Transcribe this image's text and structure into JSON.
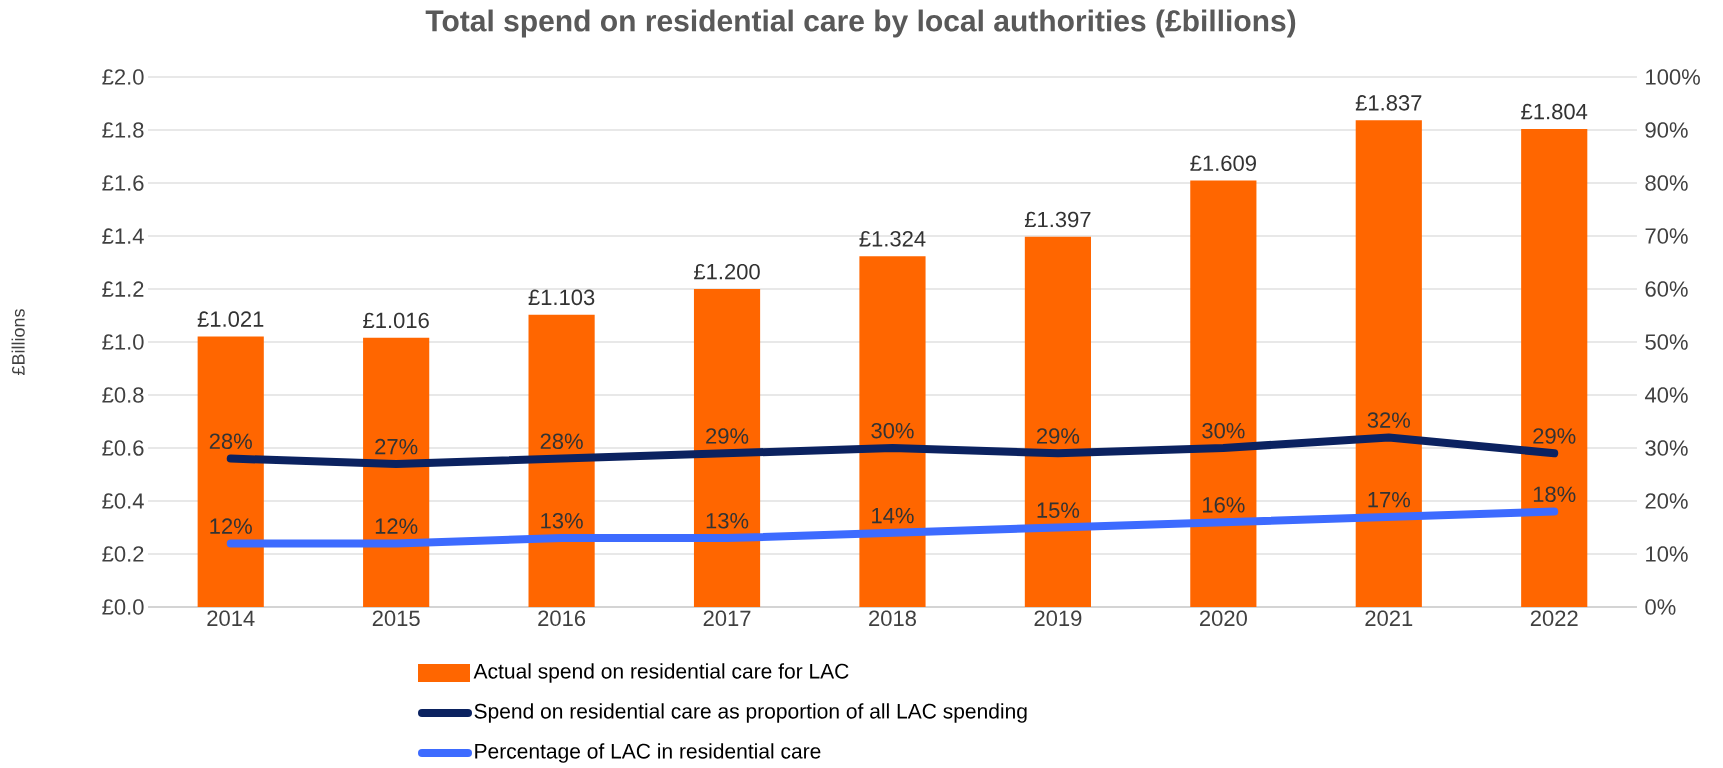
{
  "chart_data": {
    "type": "bar",
    "title": "Total spend on residential care by local authorities (£billions)",
    "ylabel": "£Billions",
    "categories": [
      "2014",
      "2015",
      "2016",
      "2017",
      "2018",
      "2019",
      "2020",
      "2021",
      "2022"
    ],
    "series": [
      {
        "name": "Actual spend on residential care for LAC",
        "color": "#ff6600",
        "values": [
          1.021,
          1.016,
          1.103,
          1.2,
          1.324,
          1.397,
          1.609,
          1.837,
          1.804
        ],
        "value_labels": [
          "£1.021",
          "£1.016",
          "£1.103",
          "£1.200",
          "£1.324",
          "£1.397",
          "£1.609",
          "£1.837",
          "£1.804"
        ]
      },
      {
        "name": "Spend on residential care as proportion of all LAC spending",
        "type": "line",
        "axis": "y2",
        "color": "#0b2260",
        "values": [
          28,
          27,
          28,
          29,
          30,
          29,
          30,
          32,
          29
        ],
        "value_labels": [
          "28%",
          "27%",
          "28%",
          "29%",
          "30%",
          "29%",
          "30%",
          "32%",
          "29%"
        ]
      },
      {
        "name": "Percentage of LAC in residential care",
        "type": "line",
        "axis": "y2",
        "color": "#3d6bff",
        "values": [
          12,
          12,
          13,
          13,
          14,
          15,
          16,
          17,
          18
        ],
        "value_labels": [
          "12%",
          "12%",
          "13%",
          "13%",
          "14%",
          "15%",
          "16%",
          "17%",
          "18%"
        ]
      }
    ],
    "ylim": [
      0,
      2.0
    ],
    "yticks": [
      {
        "value": 0,
        "label": "£0.0"
      },
      {
        "value": 0.2,
        "label": "£0.2"
      },
      {
        "value": 0.4,
        "label": "£0.4"
      },
      {
        "value": 0.6,
        "label": "£0.6"
      },
      {
        "value": 0.8,
        "label": "£0.8"
      },
      {
        "value": 1.0,
        "label": "£1.0"
      },
      {
        "value": 1.2,
        "label": "£1.2"
      },
      {
        "value": 1.4,
        "label": "£1.4"
      },
      {
        "value": 1.6,
        "label": "£1.6"
      },
      {
        "value": 1.8,
        "label": "£1.8"
      },
      {
        "value": 2.0,
        "label": "£2.0"
      }
    ],
    "y2lim": [
      0,
      100
    ],
    "y2ticks": [
      {
        "value": 0,
        "label": "0%"
      },
      {
        "value": 10,
        "label": "10%"
      },
      {
        "value": 20,
        "label": "20%"
      },
      {
        "value": 30,
        "label": "30%"
      },
      {
        "value": 40,
        "label": "40%"
      },
      {
        "value": 50,
        "label": "50%"
      },
      {
        "value": 60,
        "label": "60%"
      },
      {
        "value": 70,
        "label": "70%"
      },
      {
        "value": 80,
        "label": "80%"
      },
      {
        "value": 90,
        "label": "90%"
      },
      {
        "value": 100,
        "label": "100%"
      }
    ],
    "grid": "y",
    "legend": "bottom"
  }
}
